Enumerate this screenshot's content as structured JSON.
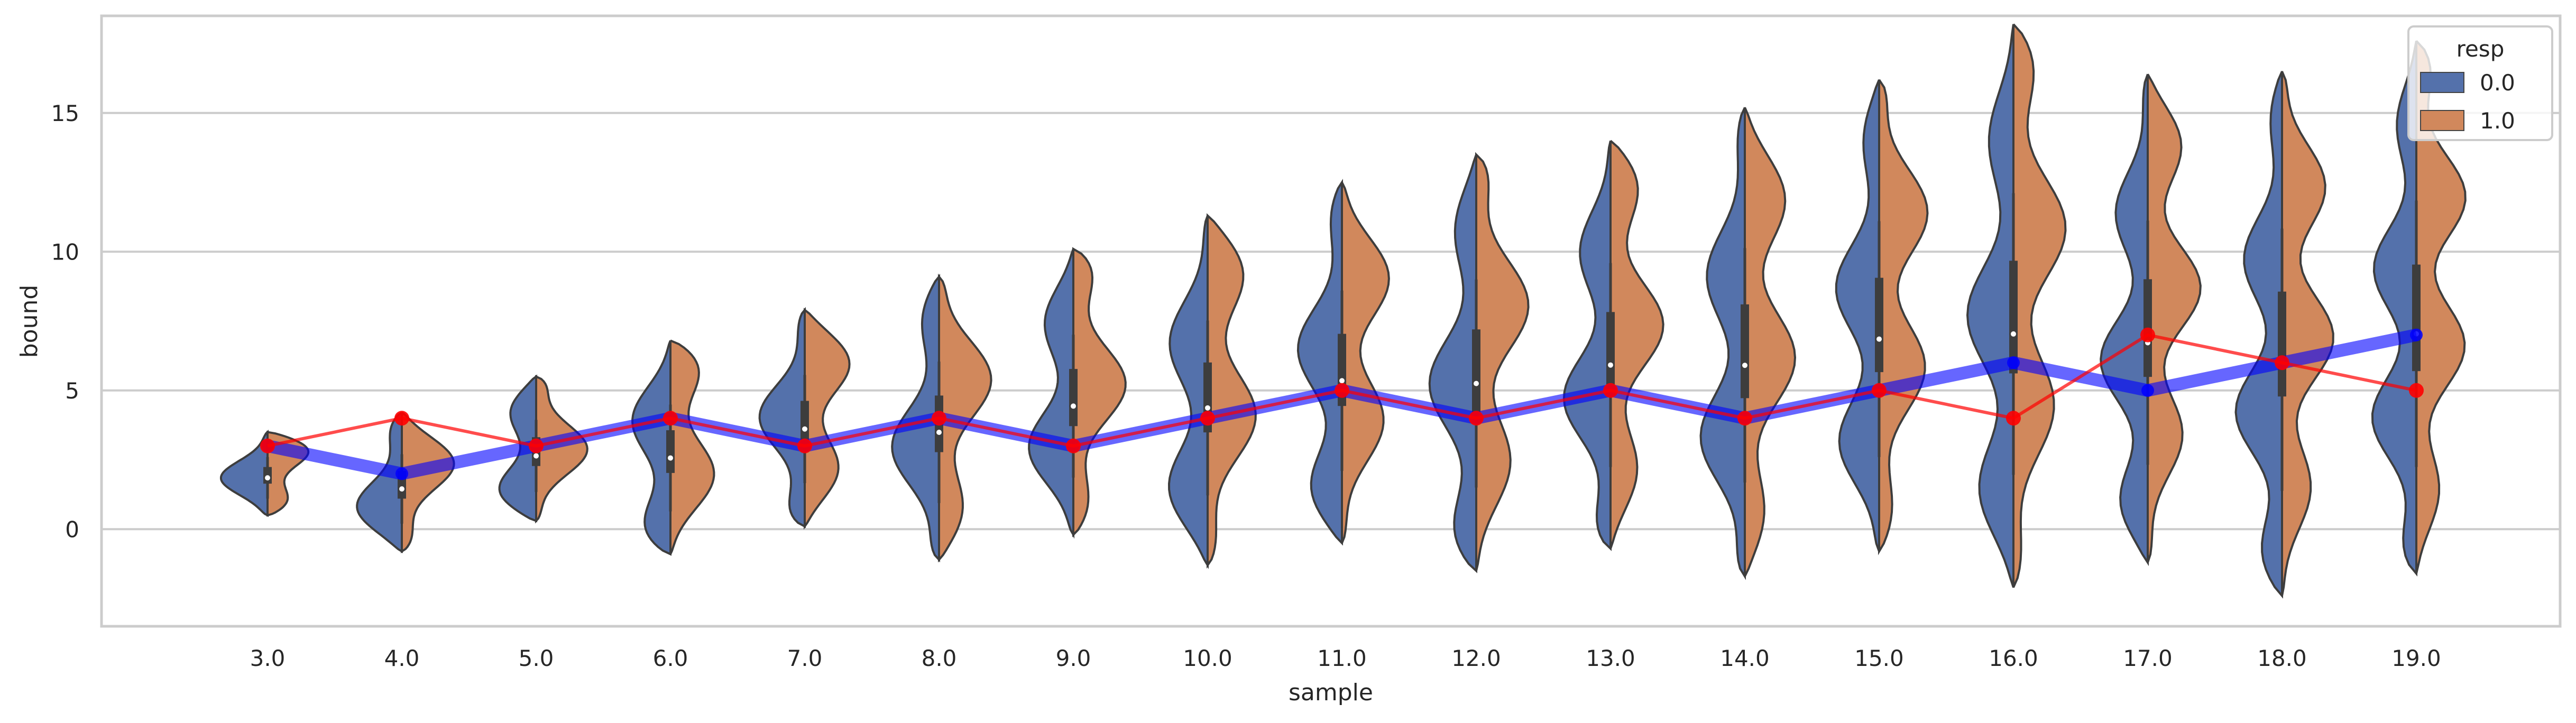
{
  "chart_data": {
    "type": "violin",
    "title": "",
    "xlabel": "sample",
    "ylabel": "bound",
    "ylim": [
      -3.5,
      18.5
    ],
    "yticks": [
      0,
      5,
      10,
      15
    ],
    "grid": "horizontal",
    "categories": [
      "3.0",
      "4.0",
      "5.0",
      "6.0",
      "7.0",
      "8.0",
      "9.0",
      "10.0",
      "11.0",
      "12.0",
      "13.0",
      "14.0",
      "15.0",
      "16.0",
      "17.0",
      "18.0",
      "19.0"
    ],
    "legend": {
      "title": "resp",
      "placement": "top-right",
      "entries": [
        {
          "label": "0.0",
          "color": "#5471ab"
        },
        {
          "label": "1.0",
          "color": "#d1885c"
        }
      ]
    },
    "violin_ranges": {
      "resp_0": [
        [
          0.5,
          3.5
        ],
        [
          -0.8,
          4.2
        ],
        [
          0.3,
          5.5
        ],
        [
          -0.9,
          6.8
        ],
        [
          0.1,
          7.9
        ],
        [
          -1.1,
          9.1
        ],
        [
          -0.2,
          10.1
        ],
        [
          -1.3,
          11.3
        ],
        [
          -0.5,
          12.5
        ],
        [
          -1.5,
          13.5
        ],
        [
          -0.7,
          14
        ],
        [
          -1.7,
          15.2
        ],
        [
          -0.8,
          16.2
        ],
        [
          -2.1,
          18.2
        ],
        [
          -1.2,
          16.4
        ],
        [
          -2.4,
          16.5
        ],
        [
          -1.6,
          17.6
        ]
      ],
      "resp_1": [
        [
          0.5,
          3.5
        ],
        [
          -0.8,
          4.2
        ],
        [
          0.3,
          5.5
        ],
        [
          -0.9,
          6.8
        ],
        [
          0.1,
          7.9
        ],
        [
          -1.1,
          9.1
        ],
        [
          -0.2,
          10.1
        ],
        [
          -1.3,
          11.3
        ],
        [
          -0.5,
          12.5
        ],
        [
          -1.5,
          13.5
        ],
        [
          -0.7,
          14
        ],
        [
          -1.7,
          15.2
        ],
        [
          -0.8,
          16.2
        ],
        [
          -2.1,
          18.2
        ],
        [
          -1.2,
          16.4
        ],
        [
          -2.4,
          16.5
        ],
        [
          -1.6,
          17.6
        ]
      ]
    },
    "series": [
      {
        "color": "#0000ff",
        "values": [
          3,
          2,
          3,
          4,
          3,
          4,
          3,
          4,
          5,
          4,
          5,
          4,
          5,
          6,
          5,
          6,
          7
        ]
      },
      {
        "color": "#ff0000",
        "values": [
          3,
          4,
          3,
          4,
          3,
          4,
          3,
          4,
          5,
          4,
          5,
          4,
          5,
          4,
          7,
          6,
          5
        ]
      }
    ]
  }
}
